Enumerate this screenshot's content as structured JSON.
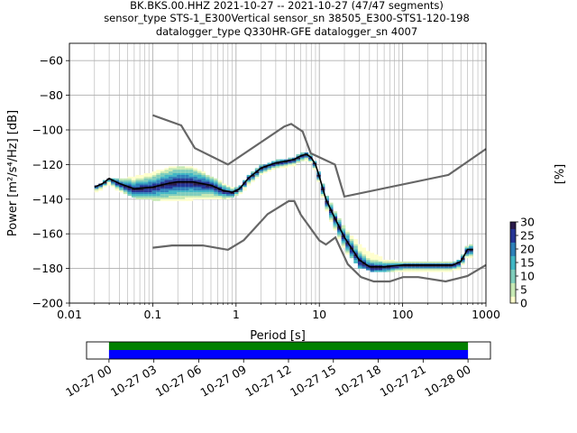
{
  "title_lines": [
    "BK.BKS.00.HHZ   2021-10-27 -- 2021-10-27  (47/47 segments)",
    "sensor_type STS-1_E300Vertical sensor_sn 38505_E300-STS1-120-198",
    "datalogger_type Q330HR-GFE datalogger_sn 4007"
  ],
  "colors": {
    "mode_line": "#000000",
    "noise_models": "#666666",
    "grid": "#b0b0b0",
    "coverage_data": "#0000ff",
    "coverage_gaps": "#008000",
    "colormap": [
      "#ffffcc",
      "#c7e9b4",
      "#7fcdbb",
      "#41b6c4",
      "#2c7fb8",
      "#253494",
      "#2a1a4a"
    ]
  },
  "chart_data": [
    {
      "type": "heatmap",
      "xlabel": "Period [s]",
      "ylabel": "Power [m²/s⁴/Hz] [dB]",
      "xscale": "log",
      "xlim": [
        0.01,
        1000
      ],
      "ylim": [
        -200,
        -50
      ],
      "x_ticks": [
        {
          "value": 0.01,
          "label": "0.01"
        },
        {
          "value": 0.1,
          "label": "0.1"
        },
        {
          "value": 1,
          "label": "1"
        },
        {
          "value": 10,
          "label": "10"
        },
        {
          "value": 100,
          "label": "100"
        },
        {
          "value": 1000,
          "label": "1000"
        }
      ],
      "y_ticks": [
        {
          "value": -60,
          "label": "−60"
        },
        {
          "value": -80,
          "label": "−80"
        },
        {
          "value": -100,
          "label": "−100"
        },
        {
          "value": -120,
          "label": "−120"
        },
        {
          "value": -140,
          "label": "−140"
        },
        {
          "value": -160,
          "label": "−160"
        },
        {
          "value": -180,
          "label": "−180"
        },
        {
          "value": -200,
          "label": "−200"
        }
      ],
      "grid": true,
      "psd_mode": {
        "period": [
          0.02,
          0.025,
          0.03,
          0.04,
          0.06,
          0.1,
          0.15,
          0.2,
          0.3,
          0.5,
          0.7,
          0.9,
          1.1,
          1.4,
          2,
          3,
          4,
          5,
          6,
          7,
          8,
          9,
          10,
          12,
          15,
          20,
          30,
          40,
          60,
          100,
          200,
          400,
          500,
          600,
          700
        ],
        "power": [
          -133,
          -131,
          -128,
          -131,
          -134,
          -133,
          -131,
          -130,
          -130,
          -132,
          -135,
          -136,
          -134,
          -128,
          -122,
          -119,
          -118,
          -117,
          -115,
          -114,
          -116,
          -120,
          -127,
          -140,
          -150,
          -162,
          -175,
          -179,
          -179,
          -178,
          -178,
          -178,
          -176,
          -169,
          -169
        ]
      },
      "psd_spread": {
        "period": [
          0.02,
          0.025,
          0.03,
          0.04,
          0.06,
          0.1,
          0.15,
          0.2,
          0.3,
          0.5,
          0.7,
          0.9,
          1.1,
          1.4,
          2,
          3,
          4,
          5,
          6,
          7,
          8,
          9,
          10,
          12,
          15,
          20,
          30,
          40,
          60,
          100,
          200,
          400,
          500,
          600,
          700
        ],
        "upper": [
          -132,
          -130,
          -127,
          -128,
          -126,
          -124,
          -121,
          -120,
          -121,
          -126,
          -130,
          -133,
          -132,
          -126,
          -120,
          -117,
          -116,
          -115,
          -113,
          -112,
          -114,
          -118,
          -124,
          -136,
          -145,
          -156,
          -165,
          -170,
          -174,
          -176,
          -176,
          -176,
          -174,
          -166,
          -166
        ],
        "lower": [
          -135,
          -133,
          -130,
          -134,
          -138,
          -139,
          -139,
          -139,
          -139,
          -138,
          -138,
          -138,
          -136,
          -131,
          -125,
          -121,
          -120,
          -119,
          -117,
          -116,
          -118,
          -122,
          -130,
          -144,
          -155,
          -168,
          -178,
          -180,
          -180,
          -180,
          -180,
          -180,
          -179,
          -172,
          -172
        ]
      },
      "noise_models": [
        {
          "name": "high",
          "period": [
            0.1,
            0.22,
            0.32,
            0.8,
            3.8,
            4.6,
            6.3,
            7.9,
            15.4,
            20,
            354.8,
            1000
          ],
          "power": [
            -91.5,
            -97.4,
            -110.5,
            -120,
            -98,
            -96.5,
            -101,
            -113.5,
            -120,
            -138.5,
            -126,
            -111
          ]
        },
        {
          "name": "low",
          "period": [
            0.1,
            0.17,
            0.4,
            0.8,
            1.24,
            2.4,
            4.3,
            5,
            6,
            10,
            12,
            15.6,
            21.9,
            31.6,
            45,
            70,
            101,
            154,
            328,
            600,
            1000
          ],
          "power": [
            -168,
            -166.7,
            -166.7,
            -169.2,
            -163.7,
            -148.6,
            -141.1,
            -141.1,
            -149,
            -163.8,
            -166.2,
            -162.1,
            -177.5,
            -185,
            -187.5,
            -187.5,
            -185,
            -185,
            -187.5,
            -184.4,
            -178
          ]
        }
      ],
      "colorbar": {
        "label": "[%]",
        "min": 0,
        "max": 30,
        "ticks": [
          0,
          5,
          10,
          15,
          20,
          25,
          30
        ]
      }
    },
    {
      "type": "bar",
      "name": "coverage",
      "x_ticks": [
        "10-27 00",
        "10-27 03",
        "10-27 06",
        "10-27 09",
        "10-27 12",
        "10-27 15",
        "10-27 18",
        "10-27 21",
        "10-28 00"
      ],
      "xlim_hours": [
        -1.5,
        25.5
      ],
      "data_range_hours": [
        0,
        24
      ]
    }
  ]
}
